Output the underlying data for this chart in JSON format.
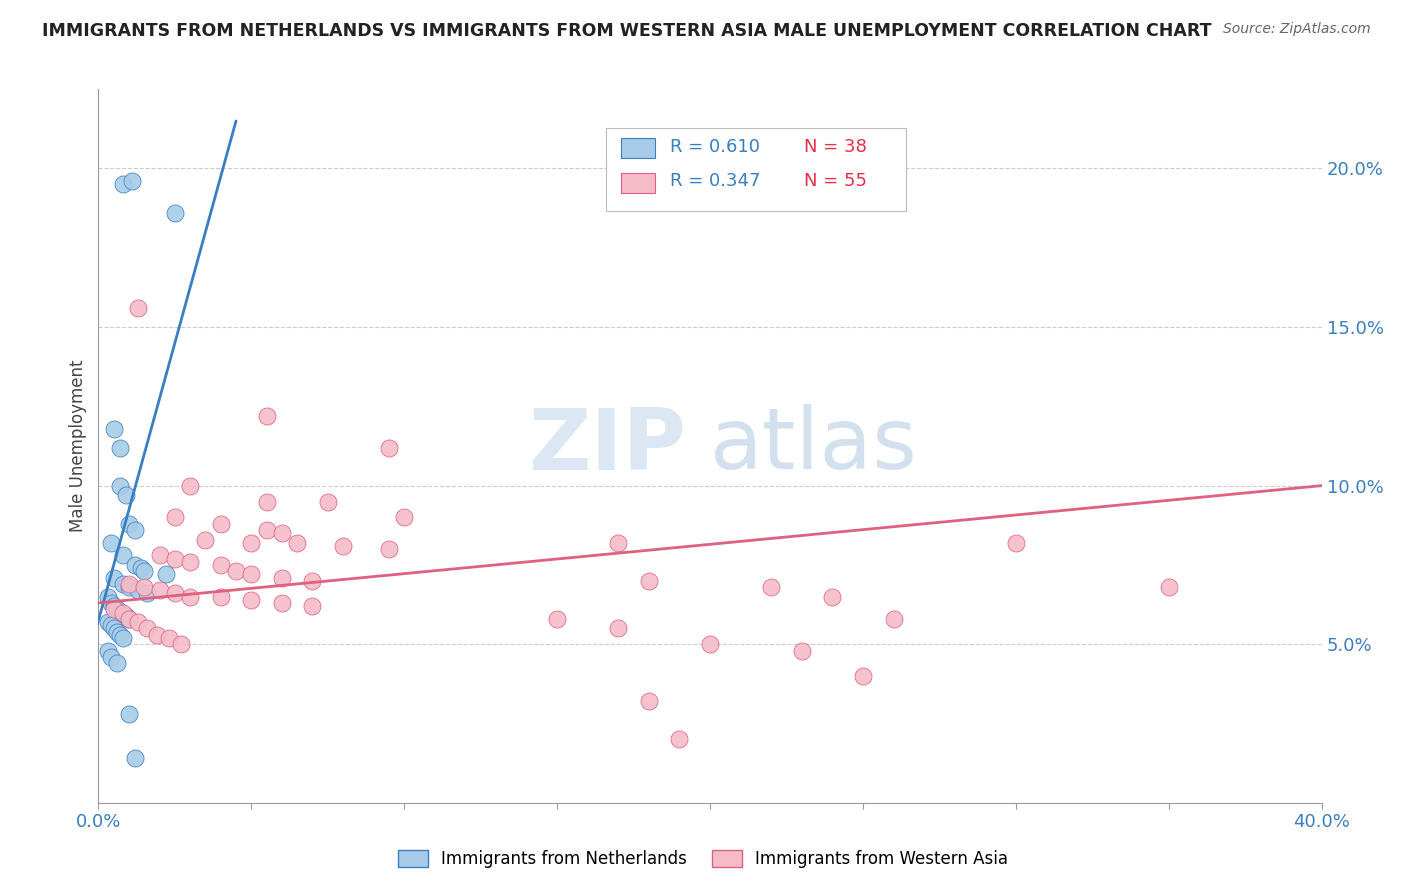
{
  "title": "IMMIGRANTS FROM NETHERLANDS VS IMMIGRANTS FROM WESTERN ASIA MALE UNEMPLOYMENT CORRELATION CHART",
  "source": "Source: ZipAtlas.com",
  "ylabel": "Male Unemployment",
  "ylabel_right_ticks": [
    "5.0%",
    "10.0%",
    "15.0%",
    "20.0%"
  ],
  "ylabel_right_vals": [
    0.05,
    0.1,
    0.15,
    0.2
  ],
  "xlim": [
    0.0,
    0.4
  ],
  "ylim": [
    0.0,
    0.225
  ],
  "legend_blue_r": "R = 0.610",
  "legend_blue_n": "N = 38",
  "legend_pink_r": "R = 0.347",
  "legend_pink_n": "N = 55",
  "label_blue": "Immigrants from Netherlands",
  "label_pink": "Immigrants from Western Asia",
  "blue_color": "#a8cce8",
  "pink_color": "#f5bcc8",
  "blue_line_color": "#3a7fc1",
  "pink_line_color": "#e06080",
  "watermark_zip": "ZIP",
  "watermark_atlas": "atlas",
  "blue_dots": [
    [
      0.008,
      0.195
    ],
    [
      0.011,
      0.196
    ],
    [
      0.025,
      0.186
    ],
    [
      0.005,
      0.118
    ],
    [
      0.007,
      0.112
    ],
    [
      0.007,
      0.1
    ],
    [
      0.009,
      0.097
    ],
    [
      0.01,
      0.088
    ],
    [
      0.012,
      0.086
    ],
    [
      0.004,
      0.082
    ],
    [
      0.008,
      0.078
    ],
    [
      0.012,
      0.075
    ],
    [
      0.014,
      0.074
    ],
    [
      0.015,
      0.073
    ],
    [
      0.022,
      0.072
    ],
    [
      0.005,
      0.071
    ],
    [
      0.008,
      0.069
    ],
    [
      0.01,
      0.068
    ],
    [
      0.013,
      0.067
    ],
    [
      0.016,
      0.066
    ],
    [
      0.003,
      0.065
    ],
    [
      0.004,
      0.063
    ],
    [
      0.005,
      0.062
    ],
    [
      0.006,
      0.061
    ],
    [
      0.007,
      0.06
    ],
    [
      0.009,
      0.059
    ],
    [
      0.01,
      0.058
    ],
    [
      0.003,
      0.057
    ],
    [
      0.004,
      0.056
    ],
    [
      0.005,
      0.055
    ],
    [
      0.006,
      0.054
    ],
    [
      0.007,
      0.053
    ],
    [
      0.008,
      0.052
    ],
    [
      0.003,
      0.048
    ],
    [
      0.004,
      0.046
    ],
    [
      0.006,
      0.044
    ],
    [
      0.01,
      0.028
    ],
    [
      0.012,
      0.014
    ]
  ],
  "pink_dots": [
    [
      0.013,
      0.156
    ],
    [
      0.055,
      0.122
    ],
    [
      0.095,
      0.112
    ],
    [
      0.03,
      0.1
    ],
    [
      0.055,
      0.095
    ],
    [
      0.075,
      0.095
    ],
    [
      0.025,
      0.09
    ],
    [
      0.04,
      0.088
    ],
    [
      0.055,
      0.086
    ],
    [
      0.06,
      0.085
    ],
    [
      0.035,
      0.083
    ],
    [
      0.05,
      0.082
    ],
    [
      0.065,
      0.082
    ],
    [
      0.08,
      0.081
    ],
    [
      0.095,
      0.08
    ],
    [
      0.02,
      0.078
    ],
    [
      0.025,
      0.077
    ],
    [
      0.03,
      0.076
    ],
    [
      0.04,
      0.075
    ],
    [
      0.045,
      0.073
    ],
    [
      0.05,
      0.072
    ],
    [
      0.06,
      0.071
    ],
    [
      0.07,
      0.07
    ],
    [
      0.01,
      0.069
    ],
    [
      0.015,
      0.068
    ],
    [
      0.02,
      0.067
    ],
    [
      0.025,
      0.066
    ],
    [
      0.03,
      0.065
    ],
    [
      0.04,
      0.065
    ],
    [
      0.05,
      0.064
    ],
    [
      0.06,
      0.063
    ],
    [
      0.07,
      0.062
    ],
    [
      0.005,
      0.061
    ],
    [
      0.008,
      0.06
    ],
    [
      0.01,
      0.058
    ],
    [
      0.013,
      0.057
    ],
    [
      0.016,
      0.055
    ],
    [
      0.019,
      0.053
    ],
    [
      0.023,
      0.052
    ],
    [
      0.027,
      0.05
    ],
    [
      0.1,
      0.09
    ],
    [
      0.17,
      0.082
    ],
    [
      0.18,
      0.07
    ],
    [
      0.22,
      0.068
    ],
    [
      0.24,
      0.065
    ],
    [
      0.15,
      0.058
    ],
    [
      0.17,
      0.055
    ],
    [
      0.2,
      0.05
    ],
    [
      0.23,
      0.048
    ],
    [
      0.3,
      0.082
    ],
    [
      0.35,
      0.068
    ],
    [
      0.18,
      0.032
    ],
    [
      0.25,
      0.04
    ],
    [
      0.19,
      0.02
    ],
    [
      0.26,
      0.058
    ]
  ],
  "blue_line_x": [
    -0.005,
    0.045
  ],
  "blue_line_y": [
    0.04,
    0.215
  ],
  "pink_line_x": [
    0.0,
    0.4
  ],
  "pink_line_y": [
    0.063,
    0.1
  ]
}
